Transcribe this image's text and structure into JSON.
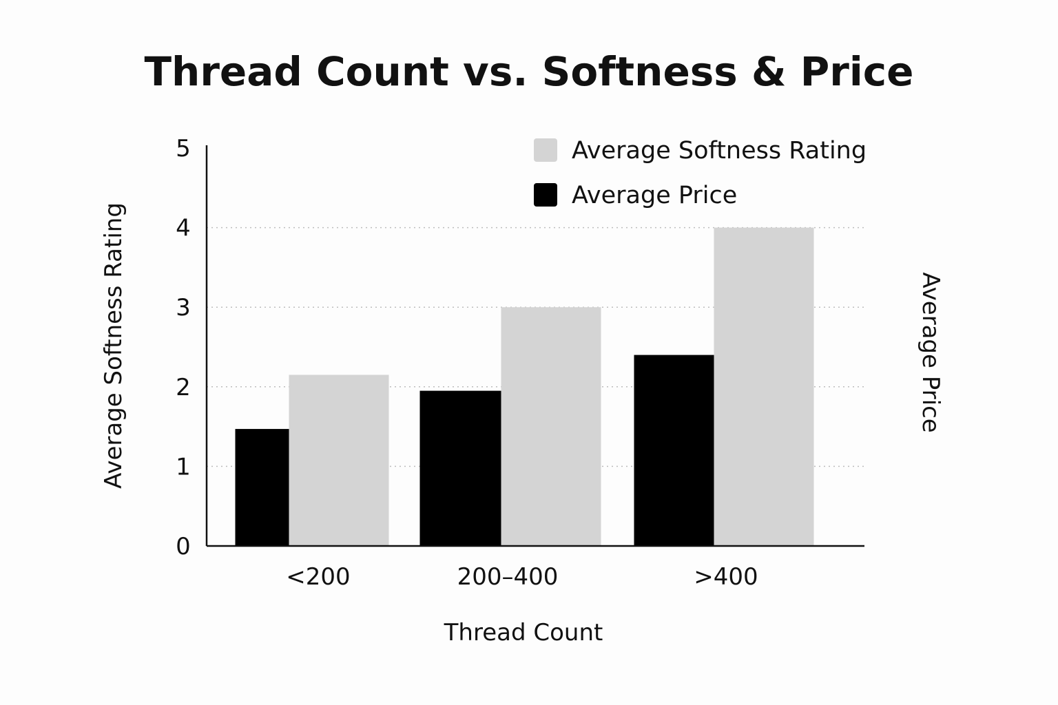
{
  "chart_data": {
    "type": "bar",
    "title": "Thread Count vs. Softness & Price",
    "xlabel": "Thread Count",
    "ylabel": "Average Softness Rating",
    "y2label": "Average Price",
    "categories": [
      "<200",
      "200–400",
      ">400"
    ],
    "ylim": [
      0,
      5
    ],
    "yticks": [
      "0",
      "1",
      "2",
      "3",
      "4",
      "5"
    ],
    "grid": true,
    "legend_position": "top-right",
    "series": [
      {
        "name": "Average Price",
        "values": [
          1.47,
          1.95,
          2.4
        ],
        "color": "#000000"
      },
      {
        "name": "Average Softness Rating",
        "values": [
          2.15,
          3.0,
          4.0
        ],
        "color": "#d4d4d4"
      }
    ],
    "legend_order": [
      "Average Softness Rating",
      "Average Price"
    ]
  }
}
